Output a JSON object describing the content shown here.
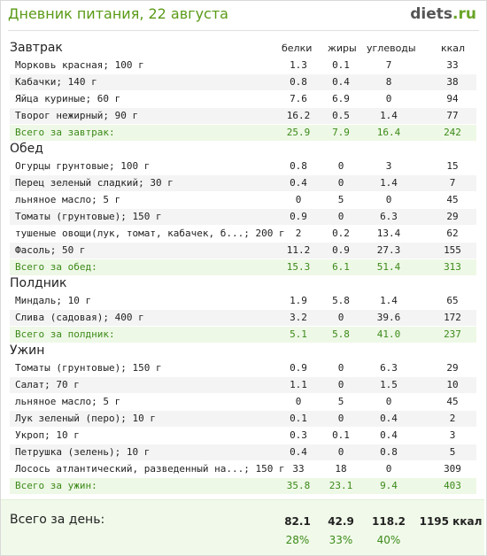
{
  "header": {
    "title": "Дневник питания, 22 августа",
    "logo_part1": "diets",
    "logo_part2": ".ru"
  },
  "columns": {
    "protein": "белки",
    "fat": "жиры",
    "carbs": "углеводы",
    "kcal": "ккал"
  },
  "sections": [
    {
      "title": "Завтрак",
      "items": [
        {
          "name": "Морковь красная; 100 г",
          "p": "1.3",
          "f": "0.1",
          "c": "7",
          "k": "33"
        },
        {
          "name": "Кабачки; 140 г",
          "p": "0.8",
          "f": "0.4",
          "c": "8",
          "k": "38"
        },
        {
          "name": "Яйца куриные; 60 г",
          "p": "7.6",
          "f": "6.9",
          "c": "0",
          "k": "94"
        },
        {
          "name": "Творог нежирный; 90 г",
          "p": "16.2",
          "f": "0.5",
          "c": "1.4",
          "k": "77"
        }
      ],
      "total": {
        "name": "Всего за завтрак:",
        "p": "25.9",
        "f": "7.9",
        "c": "16.4",
        "k": "242"
      }
    },
    {
      "title": "Обед",
      "items": [
        {
          "name": "Огурцы грунтовые; 100 г",
          "p": "0.8",
          "f": "0",
          "c": "3",
          "k": "15"
        },
        {
          "name": "Перец зеленый сладкий; 30 г",
          "p": "0.4",
          "f": "0",
          "c": "1.4",
          "k": "7"
        },
        {
          "name": "льняное масло; 5 г",
          "p": "0",
          "f": "5",
          "c": "0",
          "k": "45"
        },
        {
          "name": "Томаты (грунтовые); 150 г",
          "p": "0.9",
          "f": "0",
          "c": "6.3",
          "k": "29"
        },
        {
          "name": "тушеные овощи(лук, томат, кабачек, б...; 200 г",
          "p": "2",
          "f": "0.2",
          "c": "13.4",
          "k": "62"
        },
        {
          "name": "Фасоль; 50 г",
          "p": "11.2",
          "f": "0.9",
          "c": "27.3",
          "k": "155"
        }
      ],
      "total": {
        "name": "Всего за обед:",
        "p": "15.3",
        "f": "6.1",
        "c": "51.4",
        "k": "313"
      }
    },
    {
      "title": "Полдник",
      "items": [
        {
          "name": "Миндаль; 10 г",
          "p": "1.9",
          "f": "5.8",
          "c": "1.4",
          "k": "65"
        },
        {
          "name": "Слива (садовая); 400 г",
          "p": "3.2",
          "f": "0",
          "c": "39.6",
          "k": "172"
        }
      ],
      "total": {
        "name": "Всего за полдник:",
        "p": "5.1",
        "f": "5.8",
        "c": "41.0",
        "k": "237"
      }
    },
    {
      "title": "Ужин",
      "items": [
        {
          "name": "Томаты (грунтовые); 150 г",
          "p": "0.9",
          "f": "0",
          "c": "6.3",
          "k": "29"
        },
        {
          "name": "Салат; 70 г",
          "p": "1.1",
          "f": "0",
          "c": "1.5",
          "k": "10"
        },
        {
          "name": "льняное масло; 5 г",
          "p": "0",
          "f": "5",
          "c": "0",
          "k": "45"
        },
        {
          "name": "Лук зеленый (перо); 10 г",
          "p": "0.1",
          "f": "0",
          "c": "0.4",
          "k": "2"
        },
        {
          "name": "Укроп; 10 г",
          "p": "0.3",
          "f": "0.1",
          "c": "0.4",
          "k": "3"
        },
        {
          "name": "Петрушка (зелень); 10 г",
          "p": "0.4",
          "f": "0",
          "c": "0.8",
          "k": "5"
        },
        {
          "name": "Лосось атлантический, разведенный на...; 150 г",
          "p": "33",
          "f": "18",
          "c": "0",
          "k": "309"
        }
      ],
      "total": {
        "name": "Всего за ужин:",
        "p": "35.8",
        "f": "23.1",
        "c": "9.4",
        "k": "403"
      }
    }
  ],
  "day_total": {
    "label": "Всего за день:",
    "protein": "82.1",
    "fat": "42.9",
    "carbs": "118.2",
    "kcal": "1195 ккал",
    "protein_pct": "28%",
    "fat_pct": "33%",
    "carbs_pct": "40%"
  }
}
